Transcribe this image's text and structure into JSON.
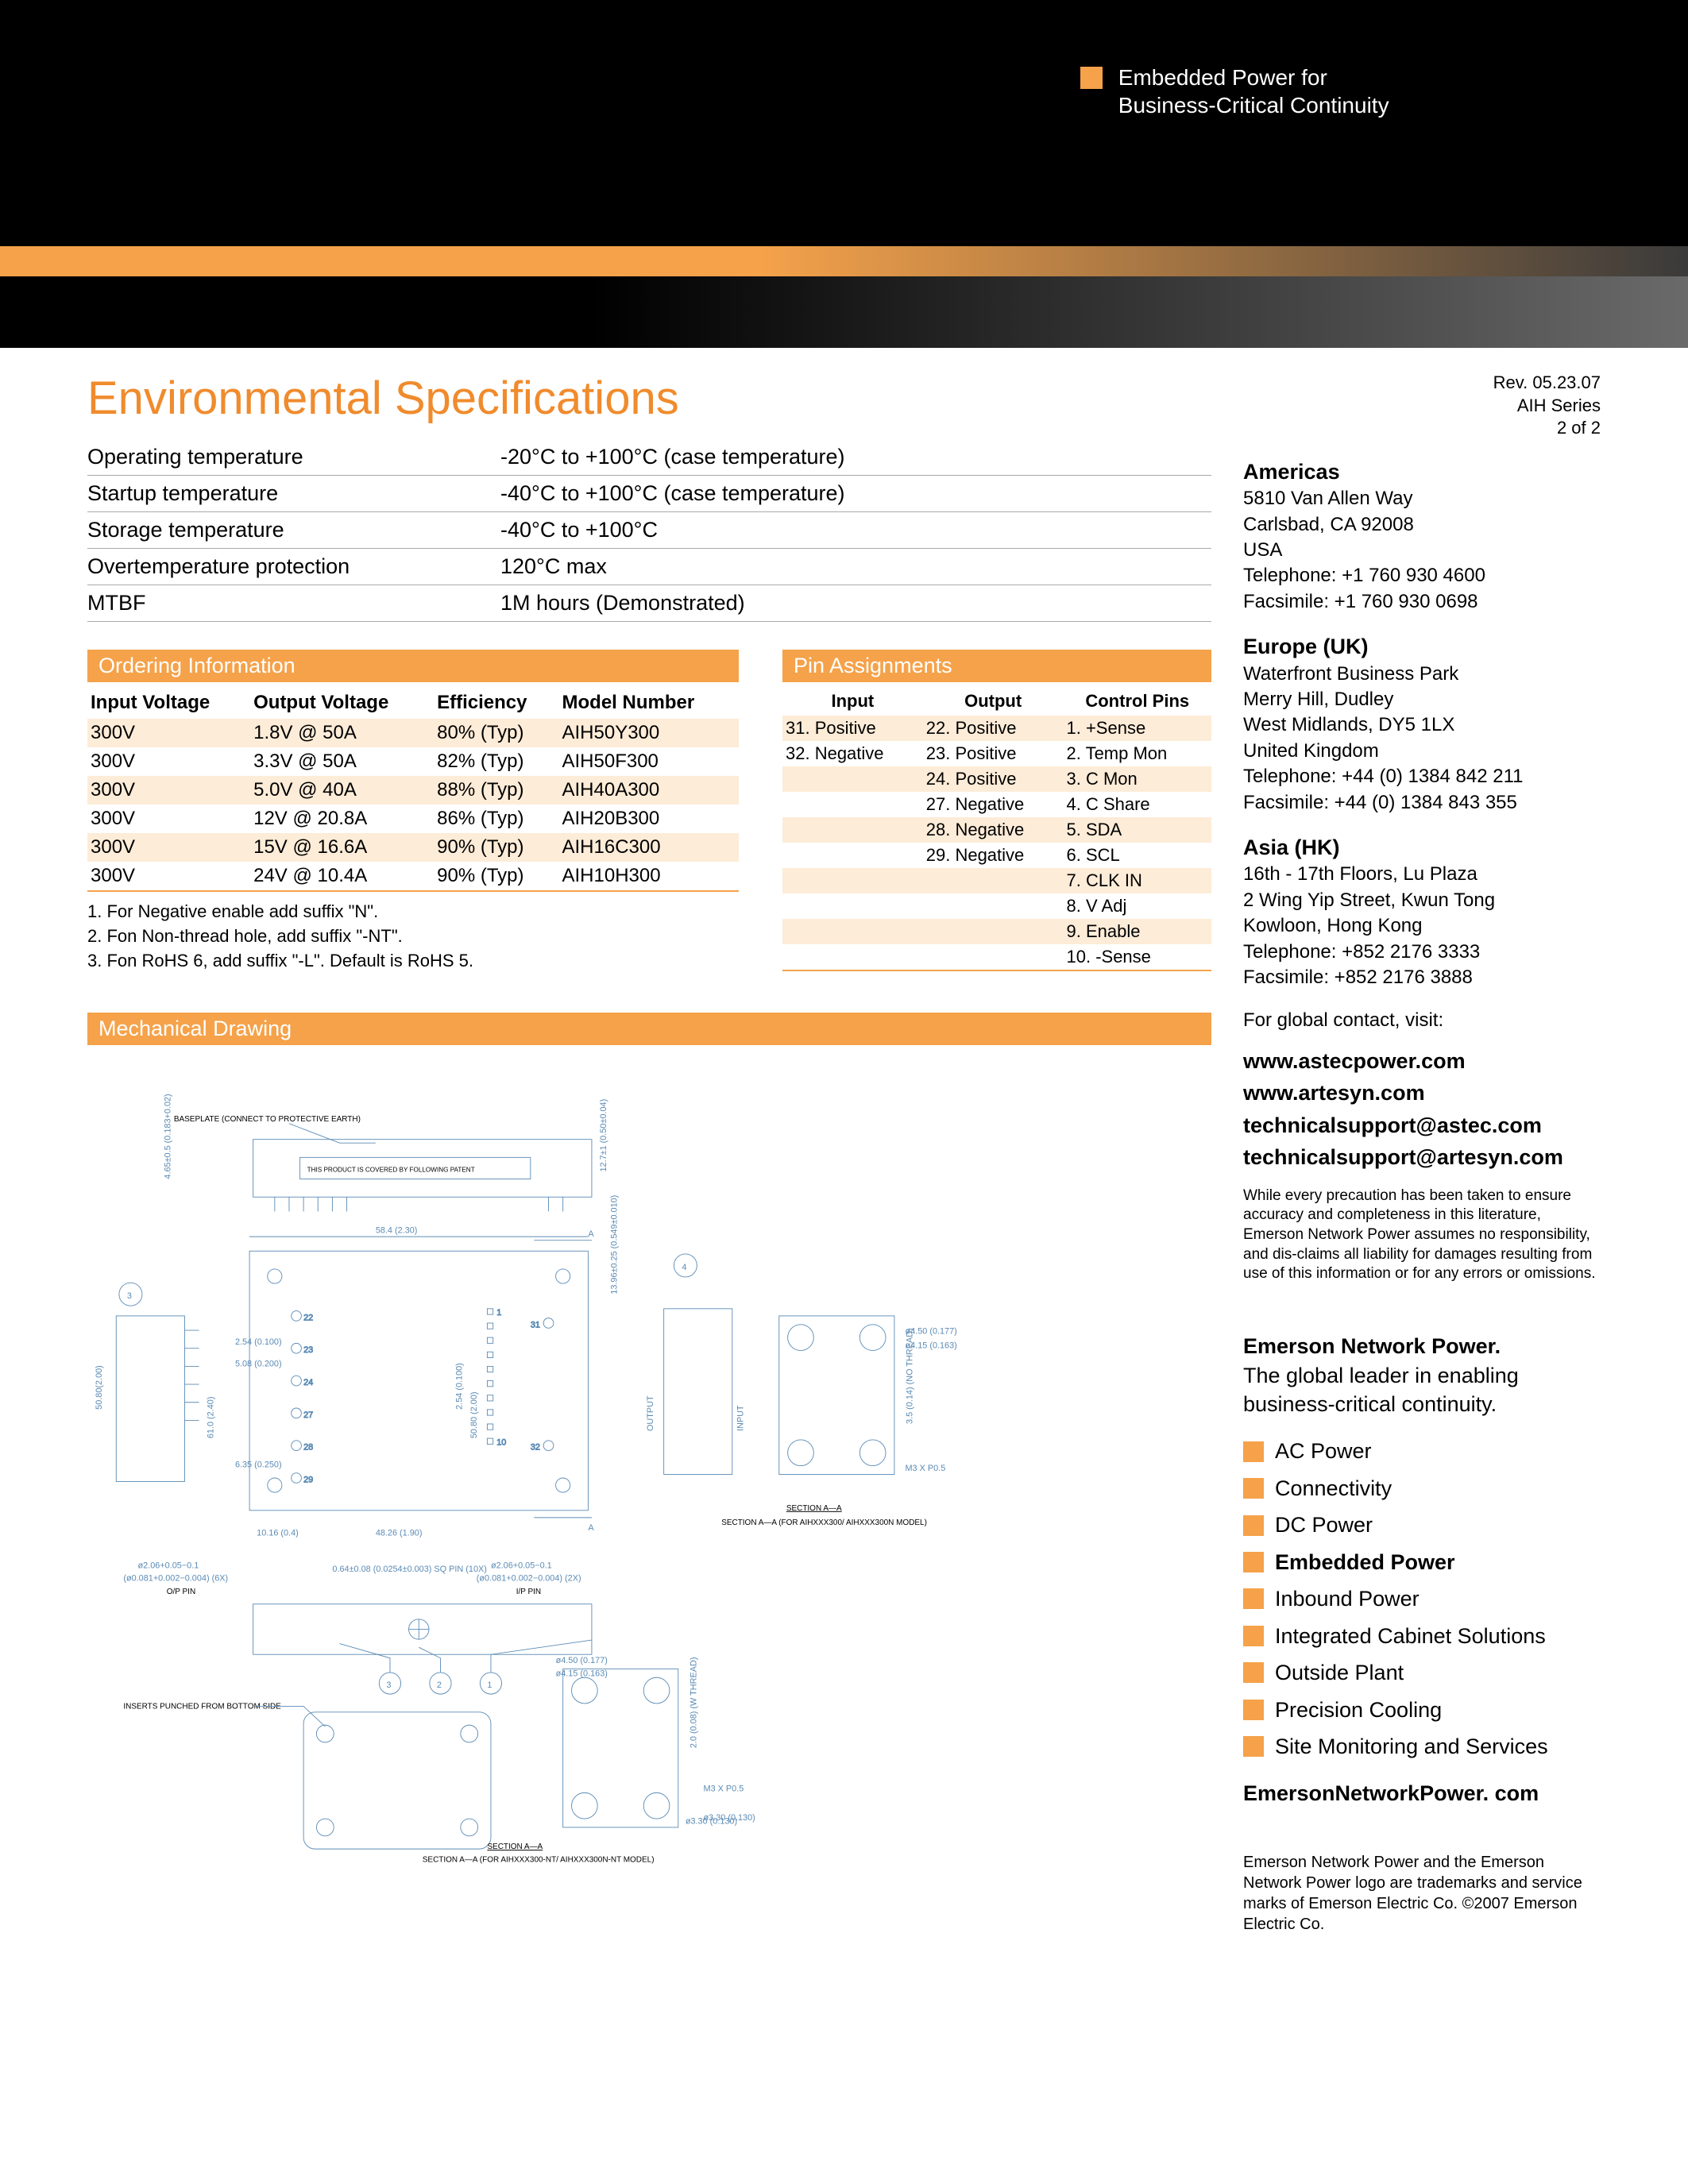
{
  "banner": {
    "tagline_l1": "Embedded Power for",
    "tagline_l2": "Business-Critical Continuity",
    "accent_color": "#f5a24a"
  },
  "rev": {
    "line1": "Rev. 05.23.07",
    "line2": "AIH Series",
    "line3": "2 of 2"
  },
  "main_title": "Environmental Specifications",
  "env_specs": [
    {
      "label": "Operating temperature",
      "value": "-20°C to +100°C (case temperature)"
    },
    {
      "label": "Startup temperature",
      "value": "-40°C to +100°C (case temperature)"
    },
    {
      "label": "Storage temperature",
      "value": "-40°C to +100°C"
    },
    {
      "label": "Overtemperature protection",
      "value": "120°C max"
    },
    {
      "label": "MTBF",
      "value": "1M hours (Demonstrated)"
    }
  ],
  "ordering": {
    "header": "Ordering Information",
    "columns": [
      "Input Voltage",
      "Output Voltage",
      "Efficiency",
      "Model Number"
    ],
    "rows": [
      [
        "300V",
        "1.8V @ 50A",
        "80% (Typ)",
        "AIH50Y300"
      ],
      [
        "300V",
        "3.3V @ 50A",
        "82% (Typ)",
        "AIH50F300"
      ],
      [
        "300V",
        "5.0V @ 40A",
        "88% (Typ)",
        "AIH40A300"
      ],
      [
        "300V",
        "12V @ 20.8A",
        "86% (Typ)",
        "AIH20B300"
      ],
      [
        "300V",
        "15V @ 16.6A",
        "90% (Typ)",
        "AIH16C300"
      ],
      [
        "300V",
        "24V @ 10.4A",
        "90% (Typ)",
        "AIH10H300"
      ]
    ],
    "notes": [
      "1. For Negative enable add suffix \"N\".",
      "2. Fon Non-thread hole, add suffix \"-NT\".",
      "3. Fon RoHS 6, add suffix \"-L\". Default is RoHS 5."
    ]
  },
  "pins": {
    "header": "Pin Assignments",
    "columns": [
      "Input",
      "Output",
      "Control Pins"
    ],
    "rows": [
      [
        "31. Positive",
        "22. Positive",
        "1. +Sense"
      ],
      [
        "32. Negative",
        "23. Positive",
        "2. Temp Mon"
      ],
      [
        "",
        "24. Positive",
        "3. C Mon"
      ],
      [
        "",
        "27. Negative",
        "4. C Share"
      ],
      [
        "",
        "28. Negative",
        "5. SDA"
      ],
      [
        "",
        "29. Negative",
        "6. SCL"
      ],
      [
        "",
        "",
        "7. CLK IN"
      ],
      [
        "",
        "",
        "8. V Adj"
      ],
      [
        "",
        "",
        "9. Enable"
      ],
      [
        "",
        "",
        "10. -Sense"
      ]
    ]
  },
  "mech": {
    "header": "Mechanical Drawing",
    "baseplate_label": "BASEPLATE (CONNECT TO PROTECTIVE EARTH)",
    "dims": [
      "4.65±0.5 (0.183+0.02)",
      "12.7±1 (0.50±0.04)",
      "58.4 (2.30)",
      "13.96±0.25 (0.549±0.010)",
      "2.54 (0.100)",
      "5.08 (0.200)",
      "61.0 (2.40)",
      "6.35 (0.250)",
      "2.54 (0.100)",
      "50.80 (2.00)",
      "10.16 (0.4)",
      "48.26 (1.90)",
      "ø2.06+0.05−0.1",
      "(ø0.081+0.002−0.004) (6X)",
      "O/P PIN",
      "0.64±0.08 (0.0254±0.003) SQ PIN (10X)",
      "ø2.06+0.05−0.1",
      "(ø0.081+0.002−0.004) (2X)",
      "I/P PIN",
      "ø4.50 (0.177)",
      "ø4.15 (0.163)",
      "3.5 (0.14) (NO THREAD)",
      "2.0 (0.08) (W THREAD)",
      "M3 X P0.5",
      "ø3.30 (0.130)",
      "INSERTS PUNCHED FROM BOTTOM SIDE",
      "SECTION A—A (FOR AIHXXX300/ AIHXXX300N MODEL)",
      "SECTION A—A (FOR AIHXXX300-NT/ AIHXXX300N-NT MODEL)"
    ],
    "module_note": "THIS PRODUCT IS COVERED BY FOLLOWING PATENT"
  },
  "contacts": {
    "americas": {
      "title": "Americas",
      "lines": [
        "5810 Van Allen Way",
        "Carlsbad, CA 92008",
        "USA",
        "Telephone: +1 760 930 4600",
        "Facsimile:   +1 760 930 0698"
      ]
    },
    "europe": {
      "title": "Europe (UK)",
      "lines": [
        "Waterfront Business Park",
        "Merry Hill, Dudley",
        "West Midlands, DY5 1LX",
        "United Kingdom",
        "Telephone: +44 (0) 1384 842 211",
        "Facsimile:   +44 (0) 1384 843 355"
      ]
    },
    "asia": {
      "title": "Asia (HK)",
      "lines": [
        "16th - 17th Floors, Lu Plaza",
        "2 Wing Yip Street, Kwun Tong",
        "Kowloon, Hong Kong",
        "Telephone: +852 2176 3333",
        "Facsimile:   +852 2176 3888"
      ]
    },
    "global_intro": "For global contact, visit:",
    "links": [
      "www.astecpower.com",
      "www.artesyn.com",
      "technicalsupport@astec.com",
      "technicalsupport@artesyn.com"
    ],
    "disclaimer": "While every precaution has been taken to ensure accuracy and completeness in this literature, Emerson Network Power assumes no responsibility, and dis-claims all liability for damages resulting from use of this information or for any errors or omissions."
  },
  "enp": {
    "lead_bold": "Emerson Network Power.",
    "lead_rest": "The global leader in enabling business-critical continuity.",
    "bullets": [
      "AC Power",
      "Connectivity",
      "DC Power",
      "Embedded Power",
      "Inbound Power",
      "Integrated Cabinet Solutions",
      "Outside Plant",
      "Precision Cooling",
      "Site Monitoring and Services"
    ],
    "bold_idx": 3,
    "url": "EmersonNetworkPower. com",
    "footer": "Emerson Network Power and the Emerson Network Power logo are trademarks and service marks of Emerson Electric Co. ©2007 Emerson Electric Co."
  }
}
